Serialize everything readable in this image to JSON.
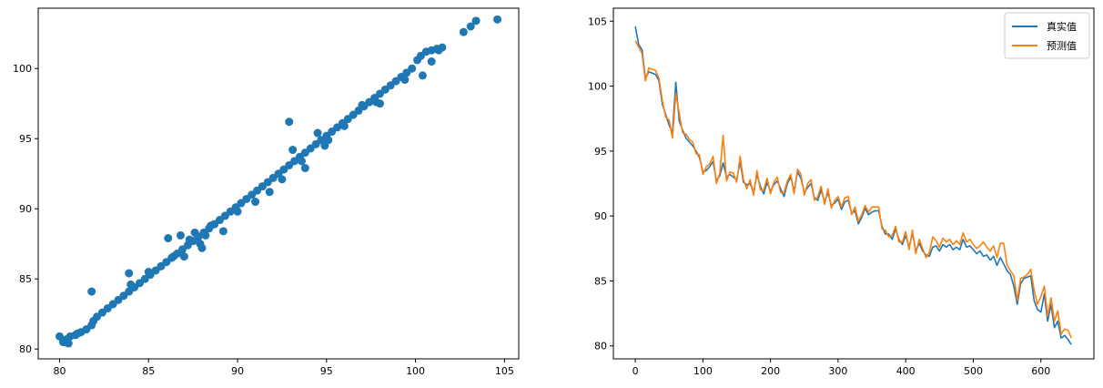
{
  "chart_data": [
    {
      "type": "scatter",
      "title": "",
      "xlabel": "",
      "ylabel": "",
      "xlim": [
        78.8,
        105.8
      ],
      "ylim": [
        79.3,
        104.3
      ],
      "xticks": [
        80,
        85,
        90,
        95,
        100,
        105
      ],
      "yticks": [
        80,
        85,
        90,
        95,
        100
      ],
      "grid": false,
      "color": "#1f77b4",
      "series": [
        {
          "x": [
            80.0,
            80.2,
            80.4,
            80.3,
            80.6,
            80.9,
            81.2,
            81.5,
            81.8,
            81.9,
            82.1,
            82.4,
            82.7,
            83.0,
            83.3,
            83.6,
            83.9,
            84.2,
            84.5,
            84.8,
            85.1,
            85.4,
            85.7,
            86.0,
            86.3,
            86.6,
            86.9,
            87.2,
            87.5,
            87.8,
            88.1,
            88.4,
            88.7,
            89.0,
            89.3,
            89.6,
            89.9,
            90.2,
            90.5,
            90.8,
            91.1,
            91.4,
            91.7,
            92.0,
            92.3,
            92.6,
            92.9,
            93.2,
            93.5,
            93.8,
            94.1,
            94.4,
            94.7,
            95.0,
            95.3,
            95.6,
            95.9,
            96.2,
            96.5,
            96.8,
            97.1,
            97.4,
            97.7,
            98.0,
            98.3,
            98.6,
            98.9,
            99.2,
            99.5,
            99.8,
            100.1,
            100.3,
            100.6,
            100.9,
            101.2,
            101.5,
            102.7,
            103.1,
            103.4,
            104.6,
            81.8,
            83.9,
            85.0,
            86.1,
            86.8,
            87.0,
            87.3,
            87.6,
            88.0,
            88.2,
            88.5,
            89.2,
            91.0,
            92.9,
            93.1,
            93.8,
            94.5,
            95.1,
            96.0,
            97.0,
            98.0,
            99.4,
            100.4,
            100.9,
            101.3,
            80.5,
            81.0,
            84.0,
            86.4,
            87.9,
            90.0,
            91.8,
            92.5,
            93.6,
            94.9,
            97.8
          ],
          "y": [
            80.9,
            80.5,
            80.7,
            80.5,
            80.9,
            81.0,
            81.2,
            81.4,
            81.7,
            82.0,
            82.3,
            82.6,
            82.9,
            83.2,
            83.5,
            83.8,
            84.1,
            84.4,
            84.7,
            85.0,
            85.3,
            85.6,
            85.9,
            86.2,
            86.5,
            86.8,
            87.1,
            87.4,
            87.7,
            88.0,
            88.3,
            88.6,
            88.9,
            89.2,
            89.5,
            89.8,
            90.1,
            90.4,
            90.7,
            91.0,
            91.3,
            91.6,
            91.9,
            92.2,
            92.5,
            92.8,
            93.1,
            93.4,
            93.7,
            94.0,
            94.3,
            94.6,
            94.9,
            95.2,
            95.5,
            95.8,
            96.1,
            96.4,
            96.7,
            97.0,
            97.3,
            97.6,
            97.9,
            98.2,
            98.5,
            98.8,
            99.1,
            99.4,
            99.7,
            100.0,
            100.6,
            100.9,
            101.2,
            101.3,
            101.4,
            101.5,
            102.6,
            103.0,
            103.4,
            103.5,
            84.1,
            85.4,
            85.5,
            87.9,
            88.1,
            86.6,
            87.8,
            88.3,
            87.2,
            88.1,
            88.8,
            88.4,
            90.5,
            96.2,
            94.2,
            92.9,
            95.4,
            94.9,
            95.9,
            97.4,
            97.5,
            99.2,
            99.5,
            100.5,
            101.3,
            80.4,
            81.1,
            84.6,
            86.6,
            87.5,
            89.8,
            91.2,
            92.1,
            93.4,
            94.5,
            97.6
          ]
        }
      ]
    },
    {
      "type": "line",
      "title": "",
      "xlabel": "",
      "ylabel": "",
      "xlim": [
        -32.4,
        678.4
      ],
      "ylim": [
        79.0,
        106.0
      ],
      "xticks": [
        0,
        100,
        200,
        300,
        400,
        500,
        600
      ],
      "yticks": [
        80,
        85,
        90,
        95,
        100,
        105
      ],
      "grid": false,
      "legend": "top-right",
      "x": [
        0,
        5,
        10,
        15,
        20,
        25,
        30,
        35,
        40,
        45,
        50,
        55,
        60,
        65,
        70,
        75,
        80,
        85,
        90,
        95,
        100,
        105,
        110,
        115,
        120,
        125,
        130,
        135,
        140,
        145,
        150,
        155,
        160,
        165,
        170,
        175,
        180,
        185,
        190,
        195,
        200,
        205,
        210,
        215,
        220,
        225,
        230,
        235,
        240,
        245,
        250,
        255,
        260,
        265,
        270,
        275,
        280,
        285,
        290,
        295,
        300,
        305,
        310,
        315,
        320,
        325,
        330,
        335,
        340,
        345,
        350,
        355,
        360,
        365,
        370,
        375,
        380,
        385,
        390,
        395,
        400,
        405,
        410,
        415,
        420,
        425,
        430,
        435,
        440,
        445,
        450,
        455,
        460,
        465,
        470,
        475,
        480,
        485,
        490,
        495,
        500,
        505,
        510,
        515,
        520,
        525,
        530,
        535,
        540,
        545,
        550,
        555,
        560,
        565,
        570,
        575,
        580,
        585,
        590,
        595,
        600,
        605,
        610,
        615,
        620,
        625,
        630,
        635,
        640,
        645
      ],
      "series": [
        {
          "name": "真实值",
          "color": "#1f77b4",
          "values": [
            104.6,
            103.2,
            102.8,
            100.6,
            101.1,
            101.0,
            100.9,
            100.4,
            98.6,
            97.8,
            97.0,
            96.4,
            100.3,
            97.3,
            96.6,
            96.0,
            95.7,
            95.4,
            95.0,
            94.5,
            93.4,
            93.5,
            93.8,
            94.2,
            92.7,
            93.1,
            94.1,
            93.0,
            93.2,
            93.0,
            92.8,
            94.2,
            92.6,
            92.4,
            92.5,
            91.8,
            93.2,
            92.3,
            91.7,
            92.6,
            91.9,
            92.4,
            92.7,
            92.1,
            91.5,
            92.5,
            93.0,
            91.9,
            93.4,
            92.9,
            91.8,
            92.2,
            92.5,
            91.4,
            91.2,
            92.0,
            91.1,
            91.8,
            90.8,
            91.0,
            91.3,
            90.5,
            91.1,
            91.2,
            90.2,
            90.4,
            89.4,
            89.9,
            90.6,
            90.1,
            90.3,
            90.4,
            90.4,
            89.2,
            88.6,
            88.6,
            88.2,
            89.0,
            88.2,
            87.8,
            88.5,
            87.6,
            88.7,
            87.3,
            87.9,
            87.3,
            87.0,
            86.9,
            87.6,
            87.7,
            87.3,
            87.8,
            87.6,
            87.8,
            87.4,
            87.6,
            87.4,
            88.2,
            87.6,
            87.7,
            87.4,
            87.1,
            87.3,
            86.9,
            87.0,
            86.6,
            86.9,
            86.2,
            86.8,
            86.3,
            85.8,
            85.5,
            84.6,
            83.2,
            84.8,
            85.2,
            85.3,
            85.4,
            83.5,
            82.8,
            82.6,
            84.0,
            81.9,
            83.2,
            81.4,
            81.9,
            80.6,
            80.8,
            80.5,
            80.1
          ]
        },
        {
          "name": "预测值",
          "color": "#ff7f0e",
          "values": [
            103.5,
            103.0,
            102.5,
            100.4,
            101.4,
            101.3,
            101.2,
            100.6,
            98.9,
            97.6,
            97.4,
            96.0,
            99.4,
            97.9,
            96.4,
            96.3,
            95.9,
            95.7,
            94.8,
            94.7,
            93.2,
            93.8,
            94.0,
            94.6,
            92.5,
            93.3,
            96.2,
            92.7,
            93.4,
            93.3,
            92.6,
            94.6,
            92.8,
            92.1,
            92.8,
            91.6,
            93.5,
            92.0,
            92.0,
            92.9,
            91.7,
            92.6,
            93.0,
            91.8,
            91.8,
            92.7,
            93.2,
            91.7,
            93.6,
            93.2,
            91.6,
            92.5,
            92.8,
            91.2,
            91.5,
            92.3,
            90.9,
            92.1,
            90.6,
            91.2,
            91.5,
            90.7,
            91.4,
            91.5,
            90.1,
            90.7,
            89.6,
            90.1,
            90.8,
            90.3,
            90.7,
            90.7,
            90.7,
            89.0,
            88.9,
            88.4,
            88.5,
            89.2,
            88.0,
            88.0,
            88.8,
            87.4,
            88.9,
            87.1,
            88.2,
            87.5,
            86.8,
            87.2,
            88.4,
            88.1,
            87.6,
            88.3,
            88.0,
            88.2,
            87.8,
            88.1,
            87.8,
            88.7,
            88.0,
            88.2,
            87.8,
            87.5,
            87.7,
            88.0,
            87.6,
            87.3,
            87.7,
            86.8,
            87.9,
            87.9,
            86.2,
            85.8,
            85.4,
            83.5,
            85.2,
            85.3,
            85.5,
            85.9,
            84.3,
            83.2,
            83.8,
            84.6,
            82.3,
            83.7,
            81.9,
            82.7,
            80.9,
            81.3,
            81.2,
            80.6
          ]
        }
      ]
    }
  ]
}
